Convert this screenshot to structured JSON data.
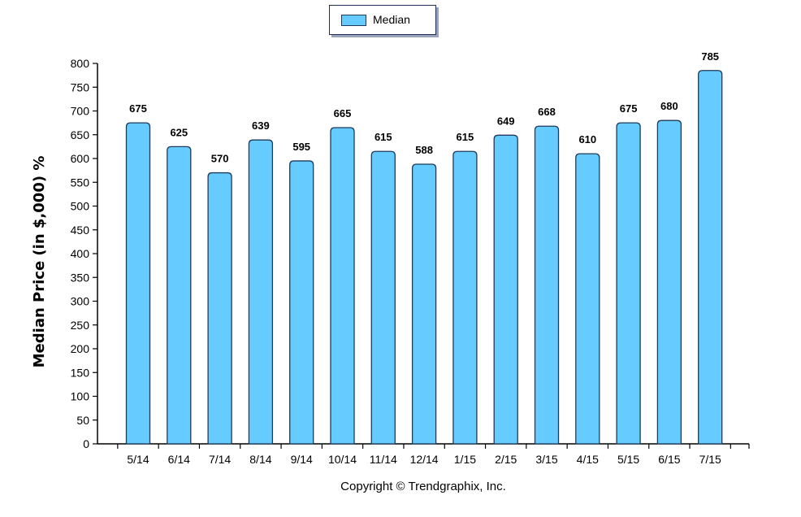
{
  "chart_data": {
    "type": "bar",
    "categories": [
      "5/14",
      "6/14",
      "7/14",
      "8/14",
      "9/14",
      "10/14",
      "11/14",
      "12/14",
      "1/15",
      "2/15",
      "3/15",
      "4/15",
      "5/15",
      "6/15",
      "7/15"
    ],
    "series": [
      {
        "name": "Median",
        "values": [
          675,
          625,
          570,
          639,
          595,
          665,
          615,
          588,
          615,
          649,
          668,
          610,
          675,
          680,
          785
        ]
      }
    ],
    "ylabel": "Median Price (in $,000) %",
    "xlabel": "",
    "ylim": [
      0,
      800
    ],
    "yticks": [
      0,
      50,
      100,
      150,
      200,
      250,
      300,
      350,
      400,
      450,
      500,
      550,
      600,
      650,
      700,
      750,
      800
    ],
    "grid": false,
    "legend_position": "top-center",
    "bar_color": "#66ccff",
    "bar_border_color": "#1f3a5a"
  },
  "legend": {
    "label": "Median"
  },
  "footer": {
    "copyright": "Copyright © Trendgraphix, Inc."
  }
}
